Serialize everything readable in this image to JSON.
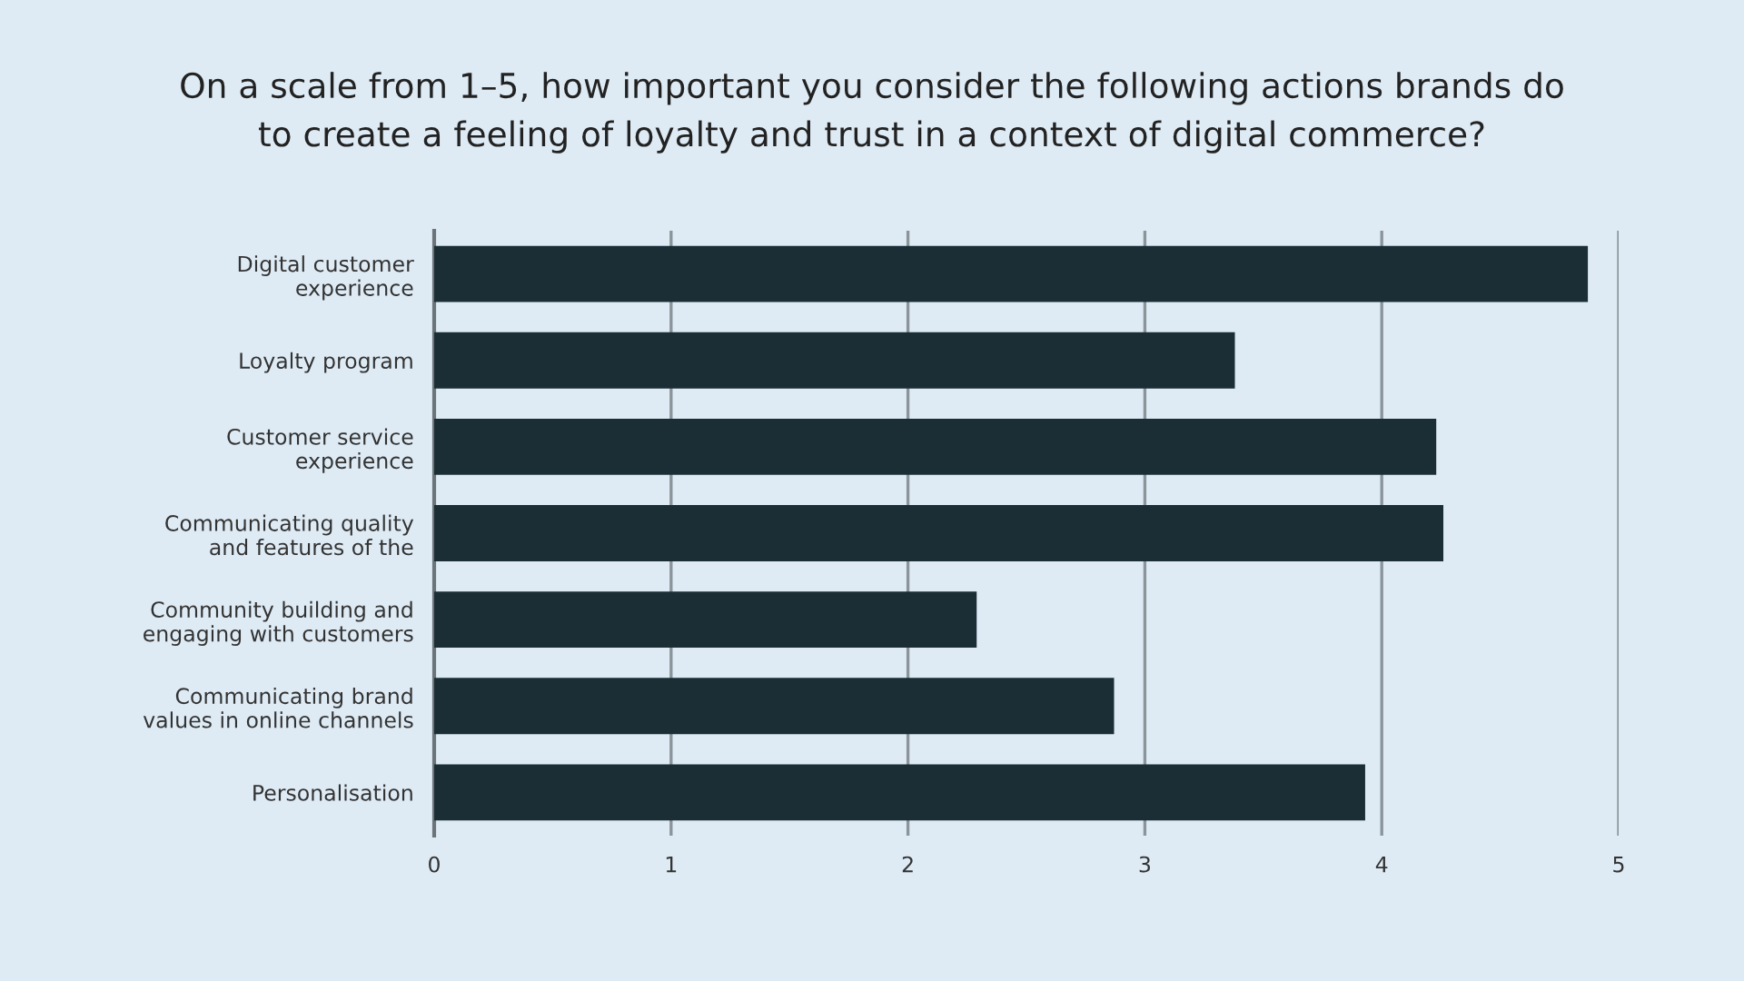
{
  "chart_data": {
    "type": "bar",
    "orientation": "horizontal",
    "title": "On a scale from 1–5, how important you consider the following actions brands do\nto create a feeling of loyalty and trust in a context of digital commerce?",
    "categories": [
      "Digital customer\nexperience",
      "Loyalty program",
      "Customer service\nexperience",
      "Communicating quality\nand features of the",
      "Community building and\nengaging with customers",
      "Communicating brand\nvalues in online channels",
      "Personalisation"
    ],
    "values": [
      4.87,
      3.38,
      4.23,
      4.26,
      2.29,
      2.87,
      3.93
    ],
    "color": "#1b2e36",
    "xlim": [
      0,
      5
    ],
    "xticks": [
      0,
      1,
      2,
      3,
      4,
      5
    ],
    "grid": "x"
  }
}
